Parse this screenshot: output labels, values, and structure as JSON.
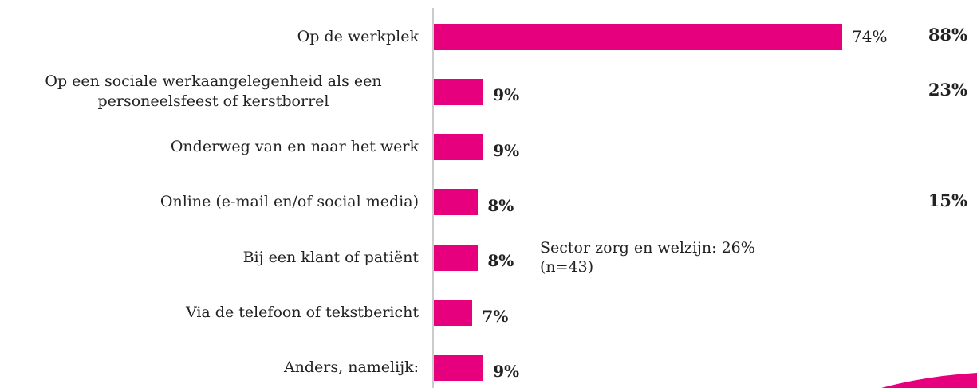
{
  "chart_data": {
    "type": "bar",
    "orientation": "horizontal",
    "categories": [
      "Op de werkplek",
      "Op een sociale werkaangelegenheid als een personeelsfeest of kerstborrel",
      "Onderweg van en naar het werk",
      "Online (e-mail en/of social media)",
      "Bij een klant of patiënt",
      "Via de telefoon of tekstbericht",
      "Anders, namelijk:"
    ],
    "values": [
      74,
      9,
      9,
      8,
      8,
      7,
      9
    ],
    "value_labels": [
      "74%",
      "9%",
      "9%",
      "8%",
      "8%",
      "7%",
      "9%"
    ],
    "totals": [
      88,
      23,
      null,
      15,
      null,
      null,
      null
    ],
    "total_labels": [
      "88%",
      "23%",
      null,
      "15%",
      null,
      null,
      null
    ],
    "color": "#e6007e",
    "annotation": [
      "Sector zorg en welzijn: 26%",
      "(n=43)"
    ]
  }
}
